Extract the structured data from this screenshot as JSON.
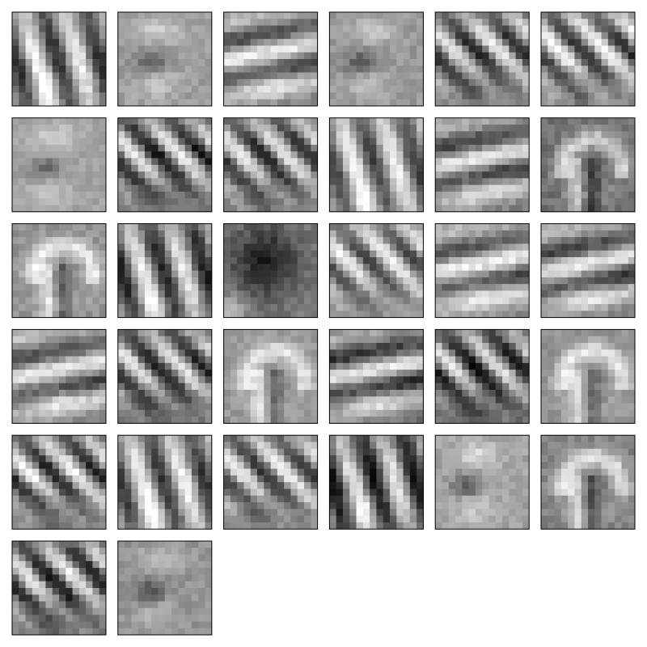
{
  "figure": {
    "background": "#ffffff",
    "frame_color": "#000000",
    "rows": 6,
    "columns": 6,
    "tiles": [
      {
        "motif": "double-vertical-stroke",
        "mean": 0.56,
        "contrast": 0.95,
        "seed": 1
      },
      {
        "motif": "top-arc-blob",
        "mean": 0.62,
        "contrast": 0.8,
        "seed": 2
      },
      {
        "motif": "horizontal-bands",
        "mean": 0.58,
        "contrast": 0.9,
        "seed": 3
      },
      {
        "motif": "top-arc-blob",
        "mean": 0.6,
        "contrast": 0.85,
        "seed": 4
      },
      {
        "motif": "diagonal-bands",
        "mean": 0.55,
        "contrast": 0.95,
        "seed": 5
      },
      {
        "motif": "diagonal-bands",
        "mean": 0.6,
        "contrast": 1.0,
        "seed": 6
      },
      {
        "motif": "top-arc-blob",
        "mean": 0.64,
        "contrast": 0.7,
        "seed": 7
      },
      {
        "motif": "diagonal-bands",
        "mean": 0.52,
        "contrast": 1.0,
        "seed": 8
      },
      {
        "motif": "diagonal-bands",
        "mean": 0.55,
        "contrast": 0.95,
        "seed": 9
      },
      {
        "motif": "double-vertical-stroke",
        "mean": 0.6,
        "contrast": 0.85,
        "seed": 10
      },
      {
        "motif": "horizontal-bands",
        "mean": 0.55,
        "contrast": 0.95,
        "seed": 11
      },
      {
        "motif": "hook",
        "mean": 0.45,
        "contrast": 1.0,
        "seed": 12
      },
      {
        "motif": "hook",
        "mean": 0.58,
        "contrast": 0.9,
        "seed": 13
      },
      {
        "motif": "double-vertical-stroke",
        "mean": 0.52,
        "contrast": 0.95,
        "seed": 14
      },
      {
        "motif": "dark-center-blob",
        "mean": 0.5,
        "contrast": 0.9,
        "seed": 15
      },
      {
        "motif": "diagonal-bands",
        "mean": 0.62,
        "contrast": 0.85,
        "seed": 16
      },
      {
        "motif": "horizontal-bands",
        "mean": 0.6,
        "contrast": 0.9,
        "seed": 17
      },
      {
        "motif": "horizontal-bands",
        "mean": 0.56,
        "contrast": 0.95,
        "seed": 18
      },
      {
        "motif": "horizontal-bands",
        "mean": 0.58,
        "contrast": 0.9,
        "seed": 19
      },
      {
        "motif": "diagonal-bands",
        "mean": 0.52,
        "contrast": 0.95,
        "seed": 20
      },
      {
        "motif": "hook",
        "mean": 0.6,
        "contrast": 0.8,
        "seed": 21
      },
      {
        "motif": "horizontal-bands",
        "mean": 0.52,
        "contrast": 1.0,
        "seed": 22
      },
      {
        "motif": "diagonal-bands",
        "mean": 0.48,
        "contrast": 1.0,
        "seed": 23
      },
      {
        "motif": "hook",
        "mean": 0.58,
        "contrast": 0.85,
        "seed": 24
      },
      {
        "motif": "diagonal-bands",
        "mean": 0.56,
        "contrast": 1.0,
        "seed": 25
      },
      {
        "motif": "double-vertical-stroke",
        "mean": 0.58,
        "contrast": 0.9,
        "seed": 26
      },
      {
        "motif": "diagonal-bands",
        "mean": 0.58,
        "contrast": 0.9,
        "seed": 27
      },
      {
        "motif": "double-vertical-stroke",
        "mean": 0.48,
        "contrast": 1.0,
        "seed": 28
      },
      {
        "motif": "top-arc-blob",
        "mean": 0.64,
        "contrast": 0.85,
        "seed": 29
      },
      {
        "motif": "hook",
        "mean": 0.52,
        "contrast": 0.95,
        "seed": 30
      },
      {
        "motif": "diagonal-bands",
        "mean": 0.52,
        "contrast": 1.0,
        "seed": 31
      },
      {
        "motif": "top-arc-blob",
        "mean": 0.58,
        "contrast": 0.8,
        "seed": 32
      }
    ]
  }
}
